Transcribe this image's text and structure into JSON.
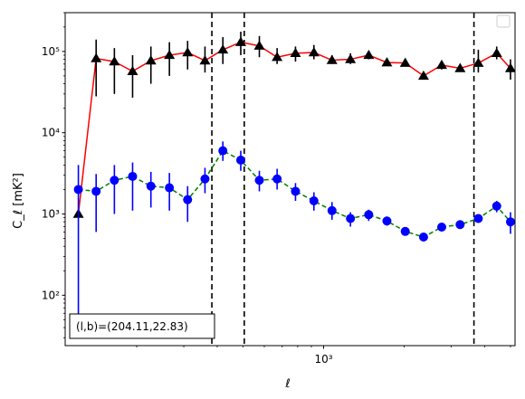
{
  "chart_data": {
    "type": "line",
    "xscale": "log",
    "yscale": "log",
    "xlim": [
      108,
      5200
    ],
    "ylim": [
      24,
      300000
    ],
    "xlabel": "ℓ",
    "ylabel": "C_ℓ [mK²]",
    "x_ticks": [
      {
        "value": 1000,
        "label": "10³"
      }
    ],
    "y_ticks": [
      {
        "value": 100,
        "label": "10²"
      },
      {
        "value": 1000,
        "label": "10³"
      },
      {
        "value": 10000,
        "label": "10⁴"
      },
      {
        "value": 100000,
        "label": "10⁵"
      }
    ],
    "legend": "top-right",
    "annotation": "(l,b)=(204.11,22.83)",
    "vlines": [
      382,
      505,
      3650
    ],
    "series": [
      {
        "color": "#ff0000",
        "linestyle": "solid",
        "marker": "triangle",
        "marker_color": "#000000",
        "errorbar_color": "#000000",
        "x": [
          121,
          141,
          165,
          193,
          226,
          265,
          310,
          360,
          420,
          490,
          575,
          670,
          785,
          920,
          1075,
          1260,
          1475,
          1725,
          2020,
          2365,
          2765,
          3240,
          3790,
          4440,
          5000
        ],
        "y": [
          1000,
          82000,
          75000,
          57000,
          77000,
          90000,
          97000,
          77000,
          105000,
          130000,
          117000,
          85000,
          95000,
          97000,
          78000,
          80000,
          90000,
          73000,
          72000,
          50000,
          68000,
          62000,
          72000,
          95000,
          62000
        ],
        "y_low": [
          1000,
          28000,
          30000,
          27000,
          40000,
          50000,
          60000,
          55000,
          70000,
          90000,
          85000,
          70000,
          75000,
          80000,
          70000,
          70000,
          80000,
          70000,
          70000,
          45000,
          60000,
          57000,
          55000,
          80000,
          45000
        ],
        "y_high": [
          1000,
          140000,
          110000,
          90000,
          115000,
          130000,
          135000,
          115000,
          150000,
          175000,
          155000,
          110000,
          115000,
          120000,
          90000,
          95000,
          100000,
          80000,
          75000,
          55000,
          75000,
          70000,
          105000,
          115000,
          80000
        ]
      },
      {
        "color": "#008000",
        "linestyle": "dashed",
        "marker": "circle",
        "marker_color": "#0000ff",
        "errorbar_color": "#0000ff",
        "x": [
          121,
          141,
          165,
          193,
          226,
          265,
          310,
          360,
          420,
          490,
          575,
          670,
          785,
          920,
          1075,
          1260,
          1475,
          1725,
          2020,
          2365,
          2765,
          3240,
          3790,
          4440,
          5000
        ],
        "y": [
          2000,
          1900,
          2600,
          2900,
          2200,
          2100,
          1500,
          2700,
          6000,
          4600,
          2600,
          2700,
          1900,
          1450,
          1100,
          880,
          980,
          820,
          610,
          520,
          690,
          740,
          880,
          1250,
          800
        ],
        "y_low": [
          30,
          600,
          1000,
          1100,
          1200,
          1100,
          800,
          1800,
          4500,
          3400,
          1900,
          2000,
          1450,
          1100,
          850,
          700,
          820,
          720,
          560,
          480,
          640,
          690,
          780,
          1050,
          570
        ],
        "y_high": [
          4000,
          3100,
          4000,
          4300,
          3300,
          3200,
          2200,
          3700,
          7800,
          6000,
          3400,
          3600,
          2400,
          1850,
          1400,
          1050,
          1130,
          930,
          670,
          560,
          740,
          800,
          990,
          1450,
          1050
        ]
      }
    ]
  }
}
